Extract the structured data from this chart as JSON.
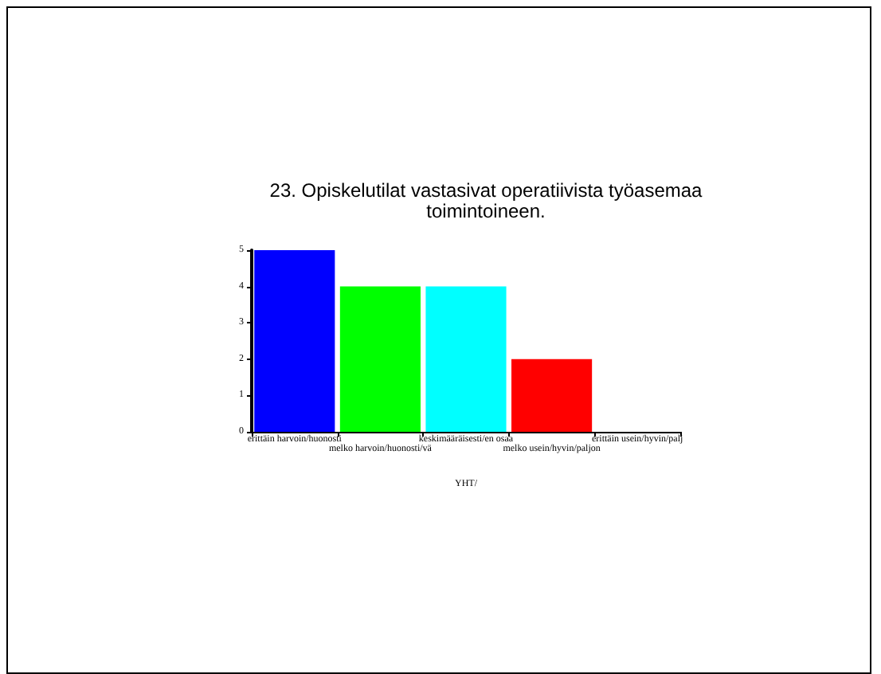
{
  "chart_data": {
    "type": "bar",
    "title": "23. Opiskelutilat vastasivat operatiivista työasemaa\ntoimintoineen.",
    "xlabel": "YHT/",
    "categories": [
      "erittäin harvoin/huonosti",
      "melko harvoin/huonosti/vä",
      "keskimääräisesti/en osaa",
      "melko usein/hyvin/paljon",
      "erittäin usein/hyvin/palj"
    ],
    "values": [
      5,
      4,
      4,
      2,
      0
    ],
    "colors": [
      "#0000ff",
      "#00ff00",
      "#00ffff",
      "#ff0000",
      "#ffff00"
    ],
    "ylim": [
      0,
      5
    ],
    "yticks": [
      0,
      1,
      2,
      3,
      4,
      5
    ]
  }
}
